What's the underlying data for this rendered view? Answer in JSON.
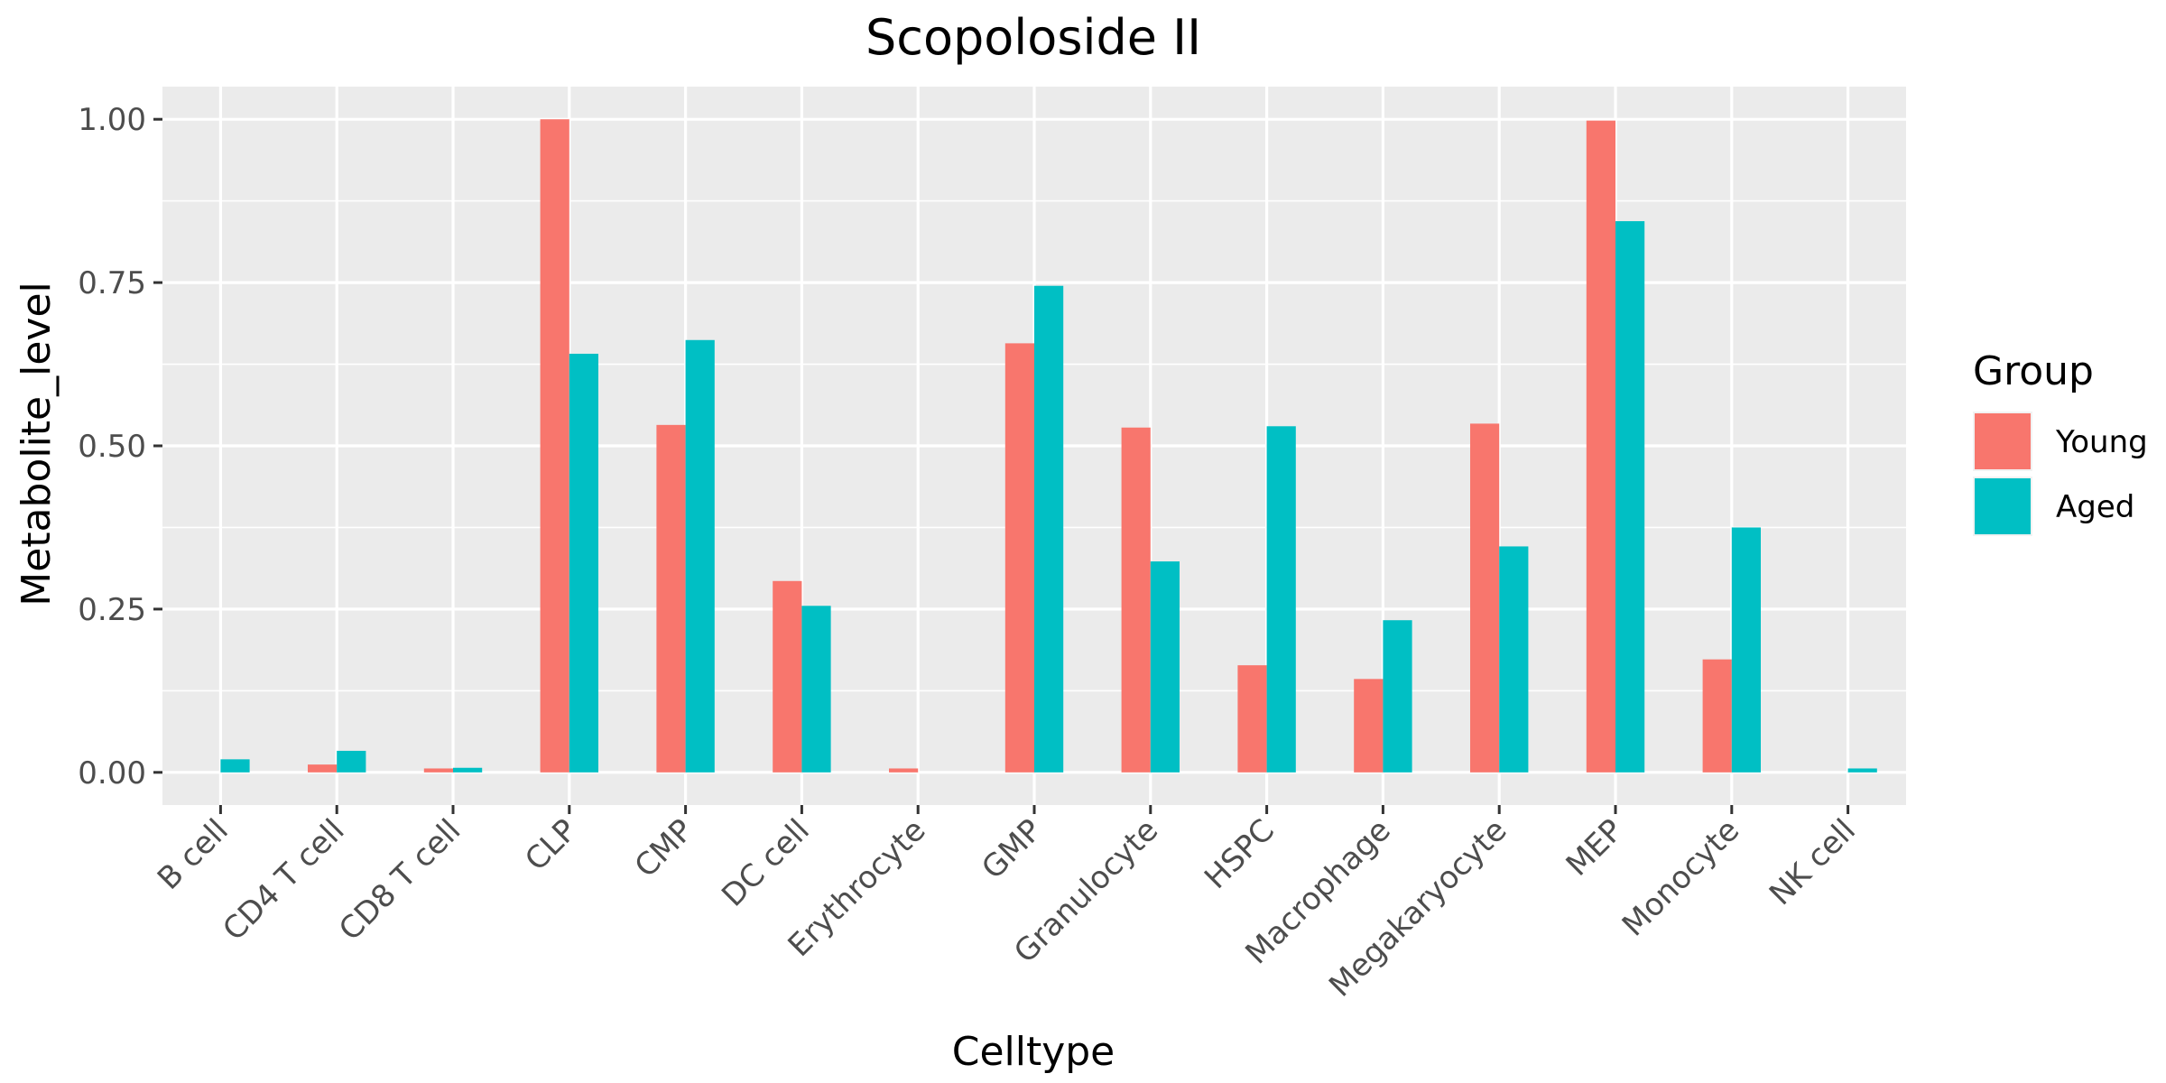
{
  "chart_data": {
    "type": "bar",
    "title": "Scopoloside II",
    "xlabel": "Celltype",
    "ylabel": "Metabolite_level",
    "categories": [
      "B cell",
      "CD4 T cell",
      "CD8 T cell",
      "CLP",
      "CMP",
      "DC cell",
      "Erythrocyte",
      "GMP",
      "Granulocyte",
      "HSPC",
      "Macrophage",
      "Megakaryocyte",
      "MEP",
      "Monocyte",
      "NK cell"
    ],
    "series": [
      {
        "name": "Young",
        "color": "#F8766D",
        "values": [
          0,
          0.012,
          0.006,
          1.0,
          0.532,
          0.293,
          0.006,
          0.657,
          0.528,
          0.164,
          0.143,
          0.534,
          0.998,
          0.173,
          0
        ]
      },
      {
        "name": "Aged",
        "color": "#00BFC4",
        "values": [
          0.02,
          0.033,
          0.007,
          0.641,
          0.662,
          0.255,
          0,
          0.745,
          0.323,
          0.53,
          0.233,
          0.346,
          0.844,
          0.375,
          0.006
        ]
      }
    ],
    "ylim": [
      -0.05,
      1.05
    ],
    "yticks": [
      0,
      0.25,
      0.5,
      0.75,
      1.0
    ],
    "ytick_labels": [
      "0.00",
      "0.25",
      "0.50",
      "0.75",
      "1.00"
    ],
    "grid": true,
    "legend": {
      "title": "Group",
      "position": "right"
    }
  }
}
